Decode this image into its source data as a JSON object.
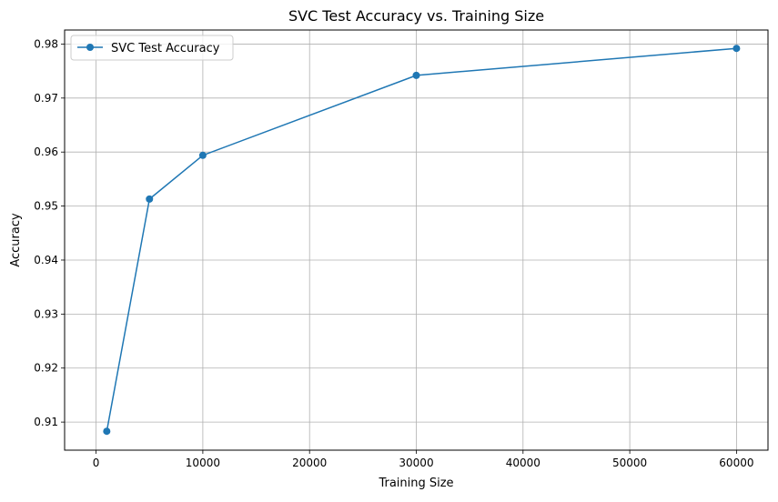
{
  "chart_data": {
    "type": "line",
    "title": "SVC Test Accuracy vs. Training Size",
    "xlabel": "Training Size",
    "ylabel": "Accuracy",
    "xlim": [
      -2950,
      62950
    ],
    "ylim": [
      0.9048,
      0.9826
    ],
    "xticks": [
      0,
      10000,
      20000,
      30000,
      40000,
      50000,
      60000
    ],
    "xtick_labels": [
      "0",
      "10000",
      "20000",
      "30000",
      "40000",
      "50000",
      "60000"
    ],
    "yticks": [
      0.91,
      0.92,
      0.93,
      0.94,
      0.95,
      0.96,
      0.97,
      0.98
    ],
    "ytick_labels": [
      "0.91",
      "0.92",
      "0.93",
      "0.94",
      "0.95",
      "0.96",
      "0.97",
      "0.98"
    ],
    "grid": true,
    "legend_position": "upper-left",
    "series": [
      {
        "name": "SVC Test Accuracy",
        "color": "#1f77b4",
        "marker": "circle",
        "x": [
          1000,
          5000,
          10000,
          30000,
          60000
        ],
        "y": [
          0.9083,
          0.9513,
          0.9594,
          0.9742,
          0.9792
        ]
      }
    ]
  }
}
